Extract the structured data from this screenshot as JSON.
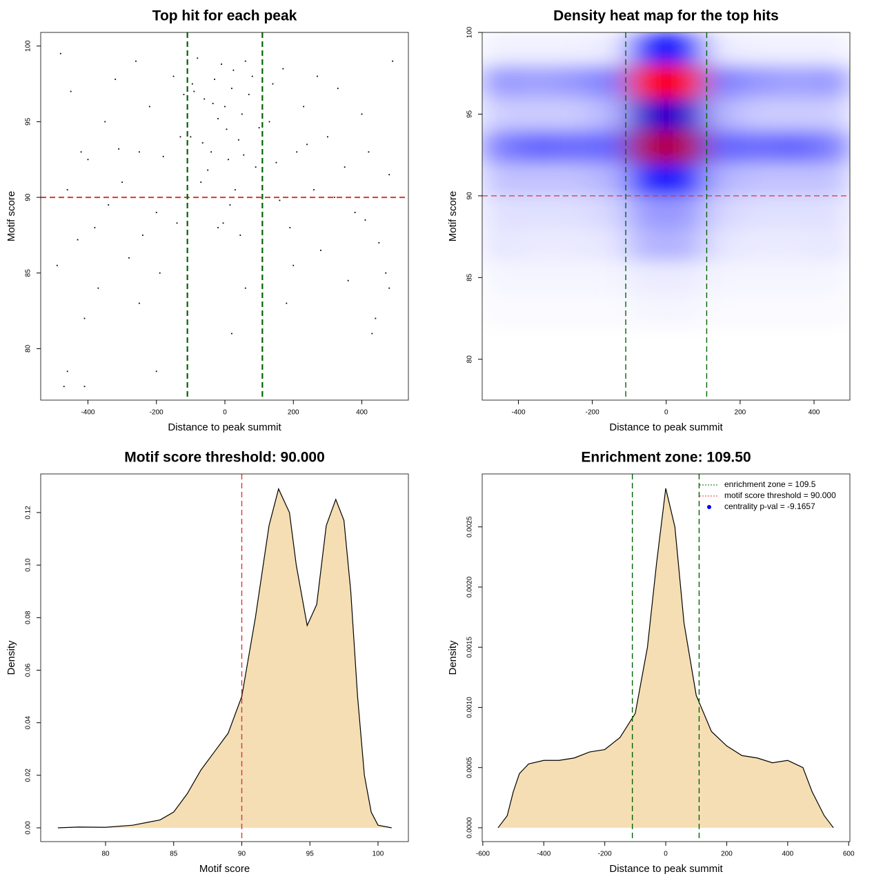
{
  "chart_data": [
    {
      "type": "scatter",
      "title": "Top hit for each peak",
      "xlabel": "Distance to peak summit",
      "ylabel": "Motif score",
      "color": "#000000",
      "x": [
        -90,
        -60,
        -30,
        0,
        20,
        50,
        80,
        -100,
        -40,
        10,
        40,
        90,
        -70,
        30,
        -10,
        60,
        -80,
        5,
        -20,
        70,
        100,
        -50,
        15,
        -5,
        45,
        -95,
        25,
        -35,
        55,
        -65,
        -480,
        -450,
        -420,
        -400,
        -380,
        -350,
        -320,
        -300,
        -280,
        -250,
        -220,
        -200,
        -180,
        -150,
        -130,
        -490,
        -460,
        -430,
        -410,
        -370,
        -340,
        -310,
        -260,
        -240,
        -190,
        -160,
        -470,
        -460,
        -410,
        -250,
        -120,
        -140,
        130,
        150,
        170,
        190,
        210,
        230,
        260,
        280,
        300,
        330,
        350,
        380,
        400,
        420,
        450,
        480,
        490,
        470,
        440,
        410,
        360,
        320,
        270,
        240,
        200,
        160,
        140,
        180,
        430,
        480,
        20,
        -200,
        -20,
        60
      ],
      "y": [
        97,
        96.5,
        97.8,
        96,
        97.2,
        95.5,
        98,
        94,
        93,
        92.5,
        93.8,
        92,
        91,
        90.5,
        98.8,
        99,
        99.2,
        94.5,
        95.2,
        96.8,
        94.6,
        91.8,
        89.5,
        88.3,
        87.5,
        97.5,
        98.4,
        96.2,
        92.8,
        93.6,
        99.5,
        97,
        93,
        92.5,
        88,
        95,
        97.8,
        91,
        86,
        93,
        96,
        89,
        92.7,
        98,
        94,
        85.5,
        90.5,
        87.2,
        82,
        84,
        89.5,
        93.2,
        99,
        87.5,
        85,
        90,
        77.5,
        78.5,
        77.5,
        83,
        96.8,
        88.3,
        95,
        92.3,
        98.5,
        88,
        93,
        96,
        90.5,
        86.5,
        94,
        97.2,
        92,
        89,
        95.5,
        93,
        87,
        91.5,
        99,
        85,
        82,
        88.5,
        84.5,
        90,
        98,
        93.5,
        85.5,
        89.8,
        97.5,
        83,
        81,
        84,
        81,
        78.5,
        88,
        84
      ],
      "xlim": [
        -538,
        536
      ],
      "ylim": [
        76.6,
        100.9
      ],
      "xticks": [
        -400,
        -200,
        0,
        200,
        400
      ],
      "yticks": [
        80,
        85,
        90,
        95,
        100
      ],
      "hlines": [
        {
          "value": 90,
          "color": "#dd3333"
        }
      ],
      "vlines": [
        {
          "value": -109.5,
          "color": "#006400"
        },
        {
          "value": 109.5,
          "color": "#006400"
        }
      ]
    },
    {
      "type": "heatmap",
      "title": "Density heat map for the top hits",
      "xlabel": "Distance to peak summit",
      "ylabel": "Motif score",
      "x": [
        -450,
        -350,
        -250,
        -150,
        -50,
        50,
        150,
        250,
        350,
        450
      ],
      "y": [
        99,
        97,
        95,
        93,
        91,
        89,
        87,
        85,
        83
      ],
      "z": [
        [
          0.03,
          0.03,
          0.03,
          0.04,
          0.45,
          0.45,
          0.04,
          0.03,
          0.03,
          0.03
        ],
        [
          0.2,
          0.18,
          0.2,
          0.25,
          1,
          1,
          0.25,
          0.2,
          0.18,
          0.2
        ],
        [
          0.1,
          0.1,
          0.1,
          0.15,
          0.6,
          0.6,
          0.15,
          0.1,
          0.1,
          0.1
        ],
        [
          0.25,
          0.3,
          0.28,
          0.3,
          0.85,
          0.85,
          0.3,
          0.28,
          0.3,
          0.25
        ],
        [
          0.12,
          0.12,
          0.12,
          0.15,
          0.45,
          0.45,
          0.15,
          0.12,
          0.12,
          0.12
        ],
        [
          0.06,
          0.06,
          0.06,
          0.08,
          0.2,
          0.2,
          0.08,
          0.06,
          0.06,
          0.06
        ],
        [
          0.05,
          0.04,
          0.04,
          0.05,
          0.15,
          0.15,
          0.05,
          0.04,
          0.04,
          0.05
        ],
        [
          0.02,
          0.02,
          0.02,
          0.02,
          0.04,
          0.04,
          0.02,
          0.02,
          0.02,
          0.02
        ],
        [
          0.01,
          0.01,
          0.01,
          0.01,
          0.02,
          0.02,
          0.01,
          0.01,
          0.01,
          0.01
        ]
      ],
      "colors": [
        "#ffffff",
        "#0000ff",
        "#ff0000"
      ],
      "xlim": [
        -498,
        497
      ],
      "ylim": [
        77.5,
        100
      ],
      "xticks": [
        -400,
        -200,
        0,
        200,
        400
      ],
      "yticks": [
        80,
        85,
        90,
        95,
        100
      ],
      "hlines": [
        {
          "value": 90,
          "color": "#dd3333"
        }
      ],
      "vlines": [
        {
          "value": -109.5,
          "color": "#006400"
        },
        {
          "value": 109.5,
          "color": "#006400"
        }
      ]
    },
    {
      "type": "area",
      "title": "Motif score threshold: 90.000",
      "xlabel": "Motif score",
      "ylabel": "Density",
      "x": [
        76.5,
        78,
        80,
        82,
        83,
        84,
        85,
        86,
        87,
        88,
        89,
        90,
        91,
        92,
        92.7,
        93.5,
        94,
        94.8,
        95.5,
        96.2,
        96.9,
        97.5,
        98,
        98.5,
        99,
        99.5,
        100,
        101
      ],
      "values": [
        0,
        0.0003,
        0.0002,
        0.001,
        0.002,
        0.003,
        0.006,
        0.013,
        0.022,
        0.029,
        0.036,
        0.05,
        0.08,
        0.115,
        0.129,
        0.12,
        0.1,
        0.077,
        0.085,
        0.115,
        0.125,
        0.117,
        0.09,
        0.05,
        0.02,
        0.006,
        0.001,
        0
      ],
      "fill": "#f5deb3",
      "color": "#000000",
      "xlim": [
        75.24,
        102.23
      ],
      "ylim": [
        -0.00525,
        0.1347
      ],
      "xticks": [
        80,
        85,
        90,
        95,
        100
      ],
      "yticks": [
        {
          "value": 0,
          "label": "0.00"
        },
        0.02,
        0.04,
        0.06,
        0.08,
        {
          "value": 0.1,
          "label": "0.10"
        },
        0.12
      ],
      "vlines": [
        {
          "value": 90,
          "color": "#dd3333"
        }
      ]
    },
    {
      "type": "area",
      "title": "Enrichment zone: 109.50",
      "xlabel": "Distance to peak summit",
      "ylabel": "Density",
      "x": [
        -550,
        -520,
        -500,
        -480,
        -450,
        -400,
        -350,
        -300,
        -250,
        -200,
        -150,
        -100,
        -60,
        -30,
        0,
        30,
        60,
        100,
        150,
        200,
        250,
        300,
        350,
        400,
        450,
        480,
        520,
        550
      ],
      "values": [
        0,
        0.0001,
        0.0003,
        0.00045,
        0.00053,
        0.00056,
        0.00056,
        0.00058,
        0.00063,
        0.00065,
        0.00075,
        0.00095,
        0.0015,
        0.0022,
        0.00282,
        0.0025,
        0.0017,
        0.0011,
        0.0008,
        0.00068,
        0.0006,
        0.00058,
        0.00054,
        0.00056,
        0.0005,
        0.0003,
        0.0001,
        0
      ],
      "fill": "#f5deb3",
      "color": "#000000",
      "xlim": [
        -602,
        604
      ],
      "ylim": [
        -0.000115,
        0.00294
      ],
      "xticks": [
        -600,
        -400,
        -200,
        0,
        200,
        400,
        600
      ],
      "yticks": [
        {
          "value": 0,
          "label": "0.0000"
        },
        0.0005,
        {
          "value": 0.001,
          "label": "0.0010"
        },
        0.0015,
        {
          "value": 0.002,
          "label": "0.0020"
        },
        0.0025
      ],
      "vlines": [
        {
          "value": -109.5,
          "color": "#006400"
        },
        {
          "value": 109.5,
          "color": "#006400"
        }
      ],
      "legend_position": "top-right",
      "legend": [
        {
          "label": "enrichment zone = 109.5",
          "color": "#006400",
          "style": "dotted"
        },
        {
          "label": "motif score threshold = 90.000",
          "color": "#dd3333",
          "style": "dotted"
        },
        {
          "label": "centrality p-val = -9.1657",
          "color": "#0000ff",
          "style": "point"
        }
      ]
    }
  ]
}
